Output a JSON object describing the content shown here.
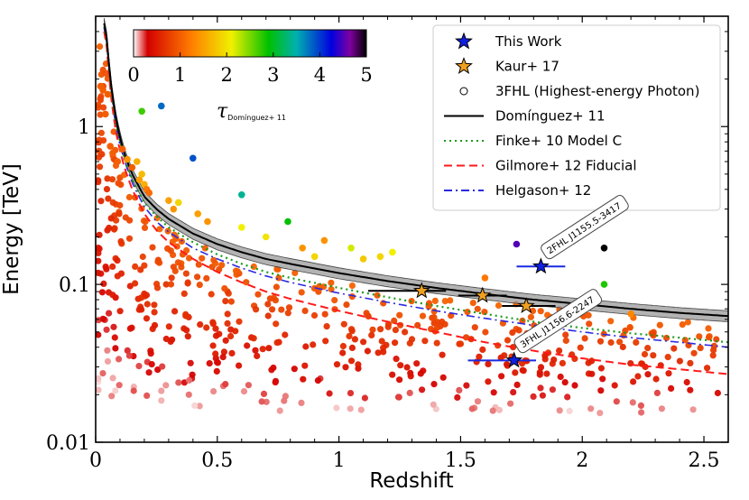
{
  "chart_data": {
    "type": "scatter",
    "xlabel": "Redshift",
    "ylabel": "Energy [TeV]",
    "xlim": [
      0,
      2.6
    ],
    "ylim": [
      0.01,
      5.0
    ],
    "yscale": "log",
    "x_ticks": [
      "0",
      "0.5",
      "1",
      "1.5",
      "2",
      "2.5"
    ],
    "x_tick_values": [
      0,
      0.5,
      1,
      1.5,
      2,
      2.5
    ],
    "y_ticks": [
      "0.01",
      "0.1",
      "1"
    ],
    "y_tick_values": [
      0.01,
      0.1,
      1
    ],
    "colorbar": {
      "label_main": "τ",
      "label_sub": "Domínguez+ 11",
      "range": [
        0,
        5
      ],
      "ticks": [
        "0",
        "1",
        "2",
        "3",
        "4",
        "5"
      ],
      "colors": [
        "#ffffff",
        "#d40000",
        "#ff7f00",
        "#f0f000",
        "#00c000",
        "#00b0b0",
        "#0000e0",
        "#8000a0",
        "#000000"
      ]
    },
    "legend": {
      "position": "top-right",
      "entries": [
        {
          "label": "This Work",
          "marker": "star",
          "color": "#1020e0"
        },
        {
          "label": "Kaur+ 17",
          "marker": "star",
          "color": "#f0a020"
        },
        {
          "label": "3FHL (Highest-energy Photon)",
          "marker": "circle",
          "color": "#ffffff"
        },
        {
          "label": "Domínguez+ 11",
          "line": "solid",
          "color": "#000000"
        },
        {
          "label": "Finke+ 10 Model C",
          "line": "dotted",
          "color": "#1a9a1a"
        },
        {
          "label": "Gilmore+ 12 Fiducial",
          "line": "dashed",
          "color": "#ff1a1a"
        },
        {
          "label": "Helgason+ 12",
          "line": "dashdot",
          "color": "#2a2ae0"
        }
      ]
    },
    "horizon_curves": [
      {
        "name": "Domínguez+ 11",
        "x": [
          0.04,
          0.06,
          0.08,
          0.1,
          0.12,
          0.15,
          0.2,
          0.25,
          0.3,
          0.4,
          0.5,
          0.6,
          0.7,
          0.8,
          1.0,
          1.2,
          1.4,
          1.6,
          1.8,
          2.0,
          2.2,
          2.4,
          2.6
        ],
        "y": [
          4.5,
          2.0,
          1.2,
          0.85,
          0.66,
          0.5,
          0.36,
          0.3,
          0.26,
          0.21,
          0.18,
          0.16,
          0.145,
          0.135,
          0.118,
          0.105,
          0.095,
          0.087,
          0.08,
          0.075,
          0.07,
          0.066,
          0.063
        ]
      },
      {
        "name": "Finke+ 10 Model C",
        "x": [
          0.04,
          0.06,
          0.08,
          0.1,
          0.12,
          0.15,
          0.2,
          0.25,
          0.3,
          0.4,
          0.5,
          0.6,
          0.7,
          0.8,
          1.0,
          1.2,
          1.4,
          1.6,
          1.8,
          2.0,
          2.2,
          2.4,
          2.6
        ],
        "y": [
          4.3,
          1.9,
          1.1,
          0.8,
          0.62,
          0.46,
          0.33,
          0.27,
          0.23,
          0.185,
          0.155,
          0.135,
          0.12,
          0.11,
          0.095,
          0.083,
          0.073,
          0.065,
          0.058,
          0.053,
          0.049,
          0.046,
          0.043
        ]
      },
      {
        "name": "Gilmore+ 12 Fiducial",
        "x": [
          0.04,
          0.06,
          0.08,
          0.1,
          0.12,
          0.15,
          0.2,
          0.25,
          0.3,
          0.4,
          0.5,
          0.6,
          0.7,
          0.8,
          1.0,
          1.2,
          1.4,
          1.6,
          1.8,
          2.0,
          2.2,
          2.4,
          2.6
        ],
        "y": [
          4.0,
          1.7,
          0.98,
          0.7,
          0.54,
          0.4,
          0.28,
          0.22,
          0.185,
          0.145,
          0.12,
          0.103,
          0.09,
          0.081,
          0.068,
          0.058,
          0.05,
          0.043,
          0.038,
          0.034,
          0.031,
          0.029,
          0.027
        ]
      },
      {
        "name": "Helgason+ 12",
        "x": [
          0.04,
          0.06,
          0.08,
          0.1,
          0.12,
          0.15,
          0.2,
          0.25,
          0.3,
          0.4,
          0.5,
          0.6,
          0.7,
          0.8,
          1.0,
          1.2,
          1.4,
          1.6,
          1.8,
          2.0,
          2.2,
          2.4,
          2.6
        ],
        "y": [
          4.2,
          1.85,
          1.05,
          0.76,
          0.6,
          0.44,
          0.31,
          0.25,
          0.215,
          0.17,
          0.145,
          0.127,
          0.113,
          0.103,
          0.088,
          0.077,
          0.068,
          0.061,
          0.055,
          0.05,
          0.046,
          0.043,
          0.04
        ]
      }
    ],
    "this_work": [
      {
        "x": 1.83,
        "y": 0.13,
        "xerr": [
          0.1,
          0.1
        ],
        "label": "2FHL J1155.5-3417"
      },
      {
        "x": 1.72,
        "y": 0.033,
        "xerr": [
          0.19,
          0.09
        ],
        "label": "3FHL J1156.6-2247"
      }
    ],
    "kaur17": [
      {
        "x": 1.34,
        "y": 0.091,
        "xerr": [
          0.22,
          0.1
        ]
      },
      {
        "x": 1.59,
        "y": 0.085,
        "xerr": [
          0.1,
          0.1
        ]
      },
      {
        "x": 1.77,
        "y": 0.073,
        "xerr": [
          0.1,
          0.12
        ]
      }
    ],
    "fhl_points": [
      {
        "x": 0.02,
        "y": 1.8,
        "tau": 1.0
      },
      {
        "x": 0.03,
        "y": 1.7,
        "tau": 1.0
      },
      {
        "x": 0.04,
        "y": 1.2,
        "tau": 1.0
      },
      {
        "x": 0.05,
        "y": 1.6,
        "tau": 1.0
      },
      {
        "x": 0.06,
        "y": 0.75,
        "tau": 1.0
      },
      {
        "x": 0.07,
        "y": 0.68,
        "tau": 1.0
      },
      {
        "x": 0.09,
        "y": 0.6,
        "tau": 1.0
      },
      {
        "x": 0.11,
        "y": 0.72,
        "tau": 1.0
      },
      {
        "x": 0.13,
        "y": 0.62,
        "tau": 1.4
      },
      {
        "x": 0.15,
        "y": 0.55,
        "tau": 1.0
      },
      {
        "x": 0.17,
        "y": 0.6,
        "tau": 1.6
      },
      {
        "x": 0.18,
        "y": 0.46,
        "tau": 1.5
      },
      {
        "x": 0.19,
        "y": 1.25,
        "tau": 2.7
      },
      {
        "x": 0.19,
        "y": 0.5,
        "tau": 1.7
      },
      {
        "x": 0.2,
        "y": 0.43,
        "tau": 1.6
      },
      {
        "x": 0.21,
        "y": 0.4,
        "tau": 1.2
      },
      {
        "x": 0.22,
        "y": 0.38,
        "tau": 1.1
      },
      {
        "x": 0.27,
        "y": 1.35,
        "tau": 3.8
      },
      {
        "x": 0.3,
        "y": 0.34,
        "tau": 1.5
      },
      {
        "x": 0.32,
        "y": 0.3,
        "tau": 1.4
      },
      {
        "x": 0.34,
        "y": 0.33,
        "tau": 1.9
      },
      {
        "x": 0.4,
        "y": 0.63,
        "tau": 3.9
      },
      {
        "x": 0.42,
        "y": 0.28,
        "tau": 1.5
      },
      {
        "x": 0.46,
        "y": 0.25,
        "tau": 1.4
      },
      {
        "x": 0.6,
        "y": 0.37,
        "tau": 3.4
      },
      {
        "x": 0.6,
        "y": 0.23,
        "tau": 2.1
      },
      {
        "x": 0.7,
        "y": 0.2,
        "tau": 2.0
      },
      {
        "x": 0.79,
        "y": 0.25,
        "tau": 2.9
      },
      {
        "x": 0.85,
        "y": 0.17,
        "tau": 1.4
      },
      {
        "x": 0.9,
        "y": 0.15,
        "tau": 1.9
      },
      {
        "x": 0.94,
        "y": 0.19,
        "tau": 1.4
      },
      {
        "x": 1.05,
        "y": 0.17,
        "tau": 2.2
      },
      {
        "x": 1.1,
        "y": 0.145,
        "tau": 1.8
      },
      {
        "x": 1.17,
        "y": 0.15,
        "tau": 1.9
      },
      {
        "x": 1.22,
        "y": 0.16,
        "tau": 2.1
      },
      {
        "x": 1.6,
        "y": 0.11,
        "tau": 1.2
      },
      {
        "x": 1.73,
        "y": 0.18,
        "tau": 4.5
      },
      {
        "x": 2.09,
        "y": 0.17,
        "tau": 5.0
      },
      {
        "x": 2.09,
        "y": 0.1,
        "tau": 2.8
      },
      {
        "x": 2.2,
        "y": 0.065,
        "tau": 1.3
      }
    ]
  }
}
